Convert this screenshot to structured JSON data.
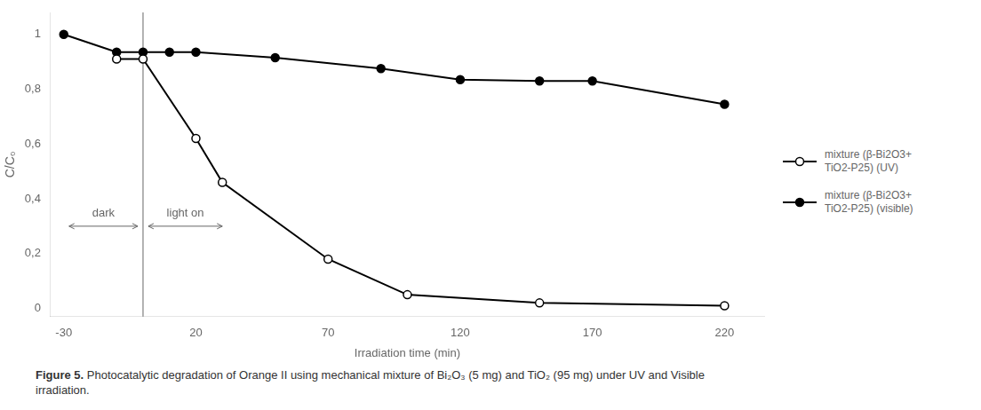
{
  "chart_data": {
    "type": "line",
    "xlabel": "Irradiation time (min)",
    "ylabel": "C/C₀",
    "series": [
      {
        "name": "mixture (β-Bi2O3+\nTiO2-P25) (UV)",
        "color": "#000000",
        "marker": "open_circle",
        "x": [
          -10,
          0,
          20,
          30,
          70,
          100,
          150,
          220
        ],
        "values": [
          0.91,
          0.91,
          0.62,
          0.46,
          0.18,
          0.05,
          0.02,
          0.01
        ]
      },
      {
        "name": "mixture (β-Bi2O3+\nTiO2-P25) (visible)",
        "color": "#000000",
        "marker": "filled_circle",
        "x": [
          -30,
          -10,
          0,
          10,
          20,
          50,
          90,
          120,
          150,
          170,
          220
        ],
        "values": [
          1.0,
          0.935,
          0.935,
          0.935,
          0.935,
          0.915,
          0.875,
          0.835,
          0.83,
          0.83,
          0.745
        ]
      }
    ],
    "xlim": [
      -35,
      235
    ],
    "ylim": [
      -0.03,
      1.08
    ],
    "xticks": [
      -30,
      20,
      70,
      120,
      170,
      220
    ],
    "yticks": [
      0,
      {
        "value": 0.2,
        "label": "0,2"
      },
      {
        "value": 0.4,
        "label": "0,4"
      },
      {
        "value": 0.6,
        "label": "0,6"
      },
      {
        "value": 0.8,
        "label": "0,8"
      },
      1
    ],
    "grid": false,
    "legend": "right",
    "vlines": [
      0
    ],
    "annotations": [
      {
        "text": "dark",
        "x": -15,
        "y": 0.325,
        "arrow": {
          "x_from": -28,
          "x_to": -2,
          "y": 0.3
        }
      },
      {
        "text": "light on",
        "x": 16,
        "y": 0.325,
        "arrow": {
          "x_from": 2,
          "x_to": 30,
          "y": 0.3
        }
      }
    ],
    "caption_label": "Figure 5.",
    "caption": "Photocatalytic degradation of Orange II using mechanical mixture of Bi₂O₃ (5 mg) and TiO₂ (95 mg) under UV and Visible\nirradiation."
  }
}
